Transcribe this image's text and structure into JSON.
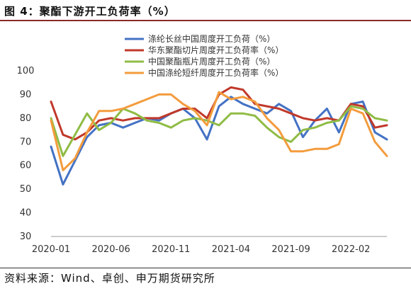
{
  "figure_title": "图 4：聚酯下游开工负荷率（%）",
  "source_text": "资料来源：Wind、卓创、申万期货研究所",
  "chart_data": {
    "type": "line",
    "xlabel": "",
    "ylabel": "",
    "ylim": [
      30,
      100
    ],
    "yticks": [
      30,
      40,
      50,
      60,
      70,
      80,
      90,
      100
    ],
    "xlim": [
      "2020-01",
      "2022-05"
    ],
    "xticks": [
      "2020-01",
      "2020-06",
      "2020-11",
      "2021-04",
      "2021-09",
      "2022-02"
    ],
    "grid": false,
    "legend_position": "top-right",
    "series": [
      {
        "name": "涤纶长丝中国周度开工负荷（%）",
        "color": "#4472c4",
        "x": [
          "2020-01",
          "2020-02",
          "2020-03",
          "2020-04",
          "2020-05",
          "2020-06",
          "2020-07",
          "2020-08",
          "2020-09",
          "2020-10",
          "2020-11",
          "2020-12",
          "2021-01",
          "2021-02",
          "2021-03",
          "2021-04",
          "2021-05",
          "2021-06",
          "2021-07",
          "2021-08",
          "2021-09",
          "2021-10",
          "2021-11",
          "2021-12",
          "2022-01",
          "2022-02",
          "2022-03",
          "2022-04",
          "2022-05"
        ],
        "y": [
          68,
          52,
          62,
          72,
          77,
          78,
          76,
          78,
          80,
          79,
          82,
          84,
          80,
          71,
          85,
          89,
          86,
          84,
          82,
          86,
          83,
          72,
          79,
          84,
          74,
          86,
          87,
          74,
          71
        ]
      },
      {
        "name": "华东聚酯切片周度开工负荷率（%）",
        "color": "#c0392b",
        "x": [
          "2020-01",
          "2020-02",
          "2020-03",
          "2020-04",
          "2020-05",
          "2020-06",
          "2020-07",
          "2020-08",
          "2020-09",
          "2020-10",
          "2020-11",
          "2020-12",
          "2021-01",
          "2021-02",
          "2021-03",
          "2021-04",
          "2021-05",
          "2021-06",
          "2021-07",
          "2021-08",
          "2021-09",
          "2021-10",
          "2021-11",
          "2021-12",
          "2022-01",
          "2022-02",
          "2022-03",
          "2022-04",
          "2022-05"
        ],
        "y": [
          87,
          73,
          71,
          74,
          79,
          80,
          79,
          80,
          80,
          80,
          82,
          84,
          84,
          80,
          90,
          93,
          92,
          86,
          85,
          84,
          82,
          80,
          79,
          80,
          79,
          86,
          85,
          76,
          77
        ]
      },
      {
        "name": "中国聚酯瓶片周度开工负荷（%）",
        "color": "#8fbc45",
        "x": [
          "2020-01",
          "2020-02",
          "2020-03",
          "2020-04",
          "2020-05",
          "2020-06",
          "2020-07",
          "2020-08",
          "2020-09",
          "2020-10",
          "2020-11",
          "2020-12",
          "2021-01",
          "2021-02",
          "2021-03",
          "2021-04",
          "2021-05",
          "2021-06",
          "2021-07",
          "2021-08",
          "2021-09",
          "2021-10",
          "2021-11",
          "2021-12",
          "2022-01",
          "2022-02",
          "2022-03",
          "2022-04",
          "2022-05"
        ],
        "y": [
          80,
          64,
          73,
          82,
          75,
          78,
          84,
          82,
          79,
          78,
          76,
          79,
          80,
          79,
          77,
          82,
          82,
          81,
          76,
          72,
          70,
          75,
          76,
          78,
          79,
          85,
          84,
          80,
          79
        ]
      },
      {
        "name": "中国涤纶短纤周度开工负荷率（%）",
        "color": "#f39c3d",
        "x": [
          "2020-01",
          "2020-02",
          "2020-03",
          "2020-04",
          "2020-05",
          "2020-06",
          "2020-07",
          "2020-08",
          "2020-09",
          "2020-10",
          "2020-11",
          "2020-12",
          "2021-01",
          "2021-02",
          "2021-03",
          "2021-04",
          "2021-05",
          "2021-06",
          "2021-07",
          "2021-08",
          "2021-09",
          "2021-10",
          "2021-11",
          "2021-12",
          "2022-01",
          "2022-02",
          "2022-03",
          "2022-04",
          "2022-05"
        ],
        "y": [
          79,
          58,
          63,
          74,
          83,
          83,
          84,
          86,
          88,
          90,
          90,
          86,
          83,
          77,
          91,
          88,
          89,
          87,
          80,
          75,
          66,
          66,
          67,
          67,
          69,
          84,
          82,
          70,
          64
        ]
      }
    ]
  }
}
